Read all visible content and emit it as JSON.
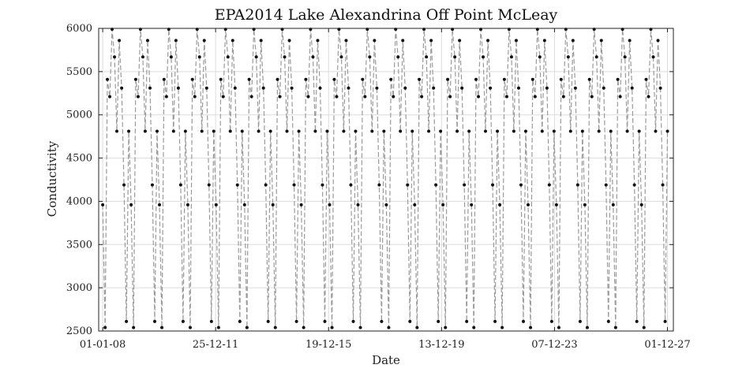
{
  "chart_data": {
    "type": "line",
    "title": "EPA2014 Lake Alexandrina Off Point McLeay",
    "xlabel": "Date",
    "ylabel": "Conductivity",
    "xlim": [
      "2007-11-10",
      "2028-02-15"
    ],
    "ylim": [
      2500,
      6000
    ],
    "x_ticks": [
      {
        "date": "2008-01-01",
        "label": "01-01-08"
      },
      {
        "date": "2011-12-25",
        "label": "25-12-11"
      },
      {
        "date": "2015-12-19",
        "label": "19-12-15"
      },
      {
        "date": "2019-12-13",
        "label": "13-12-19"
      },
      {
        "date": "2023-12-07",
        "label": "07-12-23"
      },
      {
        "date": "2027-12-01",
        "label": "01-12-27"
      }
    ],
    "y_ticks": [
      2500,
      3000,
      3500,
      4000,
      4500,
      5000,
      5500,
      6000
    ],
    "grid": true,
    "series": [
      {
        "marker": "point",
        "line_style": "dashed",
        "line_color": "#9a9a9a",
        "marker_color": "#111111",
        "x": [
          "2008-01-01",
          "2008-02-01",
          "2008-03-01",
          "2008-04-01",
          "2008-05-01",
          "2008-06-01",
          "2008-07-01",
          "2008-08-01",
          "2008-09-01",
          "2008-10-01",
          "2008-11-01",
          "2008-12-01",
          "2009-01-01",
          "2009-02-01",
          "2009-03-01",
          "2009-04-01",
          "2009-05-01",
          "2009-06-01",
          "2009-07-01",
          "2009-08-01",
          "2009-09-01",
          "2009-10-01",
          "2009-11-01",
          "2009-12-01",
          "2010-01-01",
          "2010-02-01",
          "2010-03-01",
          "2010-04-01",
          "2010-05-01",
          "2010-06-01",
          "2010-07-01",
          "2010-08-01",
          "2010-09-01",
          "2010-10-01",
          "2010-11-01",
          "2010-12-01",
          "2011-01-01",
          "2011-02-01",
          "2011-03-01",
          "2011-04-01",
          "2011-05-01",
          "2011-06-01",
          "2011-07-01",
          "2011-08-01",
          "2011-09-01",
          "2011-10-01",
          "2011-11-01",
          "2011-12-01",
          "2012-01-01",
          "2012-02-01",
          "2012-03-01",
          "2012-04-01",
          "2012-05-01",
          "2012-06-01",
          "2012-07-01",
          "2012-08-01",
          "2012-09-01",
          "2012-10-01",
          "2012-11-01",
          "2012-12-01",
          "2013-01-01",
          "2013-02-01",
          "2013-03-01",
          "2013-04-01",
          "2013-05-01",
          "2013-06-01",
          "2013-07-01",
          "2013-08-01",
          "2013-09-01",
          "2013-10-01",
          "2013-11-01",
          "2013-12-01",
          "2014-01-01",
          "2014-02-01",
          "2014-03-01",
          "2014-04-01",
          "2014-05-01",
          "2014-06-01",
          "2014-07-01",
          "2014-08-01",
          "2014-09-01",
          "2014-10-01",
          "2014-11-01",
          "2014-12-01",
          "2015-01-01",
          "2015-02-01",
          "2015-03-01",
          "2015-04-01",
          "2015-05-01",
          "2015-06-01",
          "2015-07-01",
          "2015-08-01",
          "2015-09-01",
          "2015-10-01",
          "2015-11-01",
          "2015-12-01",
          "2016-01-01",
          "2016-02-01",
          "2016-03-01",
          "2016-04-01",
          "2016-05-01",
          "2016-06-01",
          "2016-07-01",
          "2016-08-01",
          "2016-09-01",
          "2016-10-01",
          "2016-11-01",
          "2016-12-01",
          "2017-01-01",
          "2017-02-01",
          "2017-03-01",
          "2017-04-01",
          "2017-05-01",
          "2017-06-01",
          "2017-07-01",
          "2017-08-01",
          "2017-09-01",
          "2017-10-01",
          "2017-11-01",
          "2017-12-01",
          "2018-01-01",
          "2018-02-01",
          "2018-03-01",
          "2018-04-01",
          "2018-05-01",
          "2018-06-01",
          "2018-07-01",
          "2018-08-01",
          "2018-09-01",
          "2018-10-01",
          "2018-11-01",
          "2018-12-01",
          "2019-01-01",
          "2019-02-01",
          "2019-03-01",
          "2019-04-01",
          "2019-05-01",
          "2019-06-01",
          "2019-07-01",
          "2019-08-01",
          "2019-09-01",
          "2019-10-01",
          "2019-11-01",
          "2019-12-01",
          "2020-01-01",
          "2020-02-01",
          "2020-03-01",
          "2020-04-01",
          "2020-05-01",
          "2020-06-01",
          "2020-07-01",
          "2020-08-01",
          "2020-09-01",
          "2020-10-01",
          "2020-11-01",
          "2020-12-01",
          "2021-01-01",
          "2021-02-01",
          "2021-03-01",
          "2021-04-01",
          "2021-05-01",
          "2021-06-01",
          "2021-07-01",
          "2021-08-01",
          "2021-09-01",
          "2021-10-01",
          "2021-11-01",
          "2021-12-01",
          "2022-01-01",
          "2022-02-01",
          "2022-03-01",
          "2022-04-01",
          "2022-05-01",
          "2022-06-01",
          "2022-07-01",
          "2022-08-01",
          "2022-09-01",
          "2022-10-01",
          "2022-11-01",
          "2022-12-01",
          "2023-01-01",
          "2023-02-01",
          "2023-03-01",
          "2023-04-01",
          "2023-05-01",
          "2023-06-01",
          "2023-07-01",
          "2023-08-01",
          "2023-09-01",
          "2023-10-01",
          "2023-11-01",
          "2023-12-01",
          "2024-01-01",
          "2024-02-01",
          "2024-03-01",
          "2024-04-01",
          "2024-05-01",
          "2024-06-01",
          "2024-07-01",
          "2024-08-01",
          "2024-09-01",
          "2024-10-01",
          "2024-11-01",
          "2024-12-01",
          "2025-01-01",
          "2025-02-01",
          "2025-03-01",
          "2025-04-01",
          "2025-05-01",
          "2025-06-01",
          "2025-07-01",
          "2025-08-01",
          "2025-09-01",
          "2025-10-01",
          "2025-11-01",
          "2025-12-01",
          "2026-01-01",
          "2026-02-01",
          "2026-03-01",
          "2026-04-01",
          "2026-05-01",
          "2026-06-01",
          "2026-07-01",
          "2026-08-01",
          "2026-09-01",
          "2026-10-01",
          "2026-11-01",
          "2026-12-01",
          "2027-01-01",
          "2027-02-01",
          "2027-03-01",
          "2027-04-01",
          "2027-05-01",
          "2027-06-01",
          "2027-07-01",
          "2027-08-01",
          "2027-09-01",
          "2027-10-01",
          "2027-11-01",
          "2027-12-01"
        ],
        "y": [
          3960,
          2540,
          5410,
          5210,
          5990,
          5670,
          4810,
          5860,
          5310,
          4190,
          2610,
          4810,
          3960,
          2540,
          5410,
          5210,
          5990,
          5670,
          4810,
          5860,
          5310,
          4190,
          2610,
          4810,
          3960,
          2540,
          5410,
          5210,
          5990,
          5670,
          4810,
          5860,
          5310,
          4190,
          2610,
          4810,
          3960,
          2540,
          5410,
          5210,
          5990,
          5670,
          4810,
          5860,
          5310,
          4190,
          2610,
          4810,
          3960,
          2540,
          5410,
          5210,
          5990,
          5670,
          4810,
          5860,
          5310,
          4190,
          2610,
          4810,
          3960,
          2540,
          5410,
          5210,
          5990,
          5670,
          4810,
          5860,
          5310,
          4190,
          2610,
          4810,
          3960,
          2540,
          5410,
          5210,
          5990,
          5670,
          4810,
          5860,
          5310,
          4190,
          2610,
          4810,
          3960,
          2540,
          5410,
          5210,
          5990,
          5670,
          4810,
          5860,
          5310,
          4190,
          2610,
          4810,
          3960,
          2540,
          5410,
          5210,
          5990,
          5670,
          4810,
          5860,
          5310,
          4190,
          2610,
          4810,
          3960,
          2540,
          5410,
          5210,
          5990,
          5670,
          4810,
          5860,
          5310,
          4190,
          2610,
          4810,
          3960,
          2540,
          5410,
          5210,
          5990,
          5670,
          4810,
          5860,
          5310,
          4190,
          2610,
          4810,
          3960,
          2540,
          5410,
          5210,
          5990,
          5670,
          4810,
          5860,
          5310,
          4190,
          2610,
          4810,
          3960,
          2540,
          5410,
          5210,
          5990,
          5670,
          4810,
          5860,
          5310,
          4190,
          2610,
          4810,
          3960,
          2540,
          5410,
          5210,
          5990,
          5670,
          4810,
          5860,
          5310,
          4190,
          2610,
          4810,
          3960,
          2540,
          5410,
          5210,
          5990,
          5670,
          4810,
          5860,
          5310,
          4190,
          2610,
          4810,
          3960,
          2540,
          5410,
          5210,
          5990,
          5670,
          4810,
          5860,
          5310,
          4190,
          2610,
          4810,
          3960,
          2540,
          5410,
          5210,
          5990,
          5670,
          4810,
          5860,
          5310,
          4190,
          2610,
          4810,
          3960,
          2540,
          5410,
          5210,
          5990,
          5670,
          4810,
          5860,
          5310,
          4190,
          2610,
          4810,
          3960,
          2540,
          5410,
          5210,
          5990,
          5670,
          4810,
          5860,
          5310,
          4190,
          2610,
          4810,
          3960,
          2540,
          5410,
          5210,
          5990,
          5670,
          4810,
          5860,
          5310,
          4190,
          2610,
          4810
        ]
      }
    ]
  }
}
